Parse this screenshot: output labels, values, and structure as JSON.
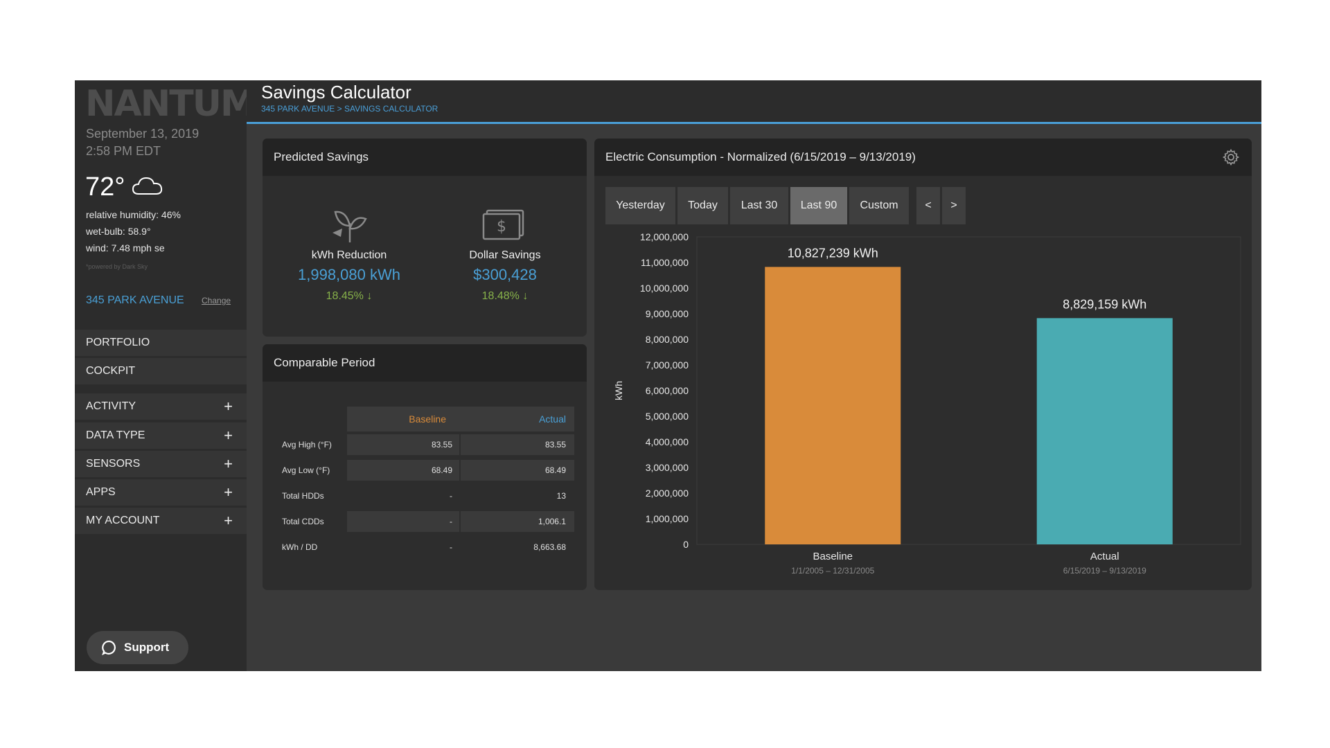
{
  "sidebar": {
    "logo": "NANTUM",
    "date": "September 13, 2019",
    "time": "2:58 PM EDT",
    "temperature": "72°",
    "weather_icon": "cloud-icon",
    "humidity": "relative humidity: 46%",
    "wet_bulb": "wet-bulb: 58.9°",
    "wind": "wind: 7.48 mph se",
    "powered_by": "*powered by Dark Sky",
    "building": "345 PARK AVENUE",
    "change_label": "Change",
    "nav": [
      {
        "label": "PORTFOLIO",
        "expandable": false
      },
      {
        "label": "COCKPIT",
        "expandable": false
      },
      {
        "label": "ACTIVITY",
        "expandable": true
      },
      {
        "label": "DATA TYPE",
        "expandable": true
      },
      {
        "label": "SENSORS",
        "expandable": true
      },
      {
        "label": "APPS",
        "expandable": true
      },
      {
        "label": "MY ACCOUNT",
        "expandable": true
      }
    ],
    "support_label": "Support"
  },
  "header": {
    "title": "Savings Calculator",
    "breadcrumb": "345 PARK AVENUE > SAVINGS CALCULATOR"
  },
  "predicted_savings": {
    "title": "Predicted Savings",
    "kwh": {
      "label": "kWh Reduction",
      "value": "1,998,080 kWh",
      "pct": "18.45%",
      "icon": "plant-icon"
    },
    "dollar": {
      "label": "Dollar Savings",
      "value": "$300,428",
      "pct": "18.48%",
      "icon": "money-icon"
    }
  },
  "comparable_period": {
    "title": "Comparable Period",
    "col_baseline": "Baseline",
    "col_actual": "Actual",
    "rows": [
      {
        "label": "Avg High (°F)",
        "baseline": "83.55",
        "actual": "83.55"
      },
      {
        "label": "Avg Low (°F)",
        "baseline": "68.49",
        "actual": "68.49"
      },
      {
        "label": "Total HDDs",
        "baseline": "-",
        "actual": "13"
      },
      {
        "label": "Total CDDs",
        "baseline": "-",
        "actual": "1,006.1"
      },
      {
        "label": "kWh / DD",
        "baseline": "-",
        "actual": "8,663.68"
      }
    ]
  },
  "consumption": {
    "title": "Electric Consumption - Normalized (6/15/2019 – 9/13/2019)",
    "tabs": [
      "Yesterday",
      "Today",
      "Last 30",
      "Last 90",
      "Custom"
    ],
    "active_tab": "Last 90",
    "prev": "<",
    "next": ">"
  },
  "colors": {
    "baseline": "#d98b3a",
    "actual": "#4aabb2",
    "accent": "#4a9fd8",
    "positive": "#87b24a"
  },
  "chart_data": {
    "type": "bar",
    "categories": [
      "Baseline",
      "Actual"
    ],
    "sublabels": [
      "1/1/2005 – 12/31/2005",
      "6/15/2019 – 9/13/2019"
    ],
    "values": [
      10827239,
      8829159
    ],
    "data_labels": [
      "10,827,239 kWh",
      "8,829,159 kWh"
    ],
    "ylabel": "kWh",
    "ylim": [
      0,
      12000000
    ],
    "yticks": [
      0,
      1000000,
      2000000,
      3000000,
      4000000,
      5000000,
      6000000,
      7000000,
      8000000,
      9000000,
      10000000,
      11000000,
      12000000
    ],
    "ytick_labels": [
      "0",
      "1,000,000",
      "2,000,000",
      "3,000,000",
      "4,000,000",
      "5,000,000",
      "6,000,000",
      "7,000,000",
      "8,000,000",
      "9,000,000",
      "10,000,000",
      "11,000,000",
      "12,000,000"
    ],
    "grid": false,
    "legend": "none"
  }
}
